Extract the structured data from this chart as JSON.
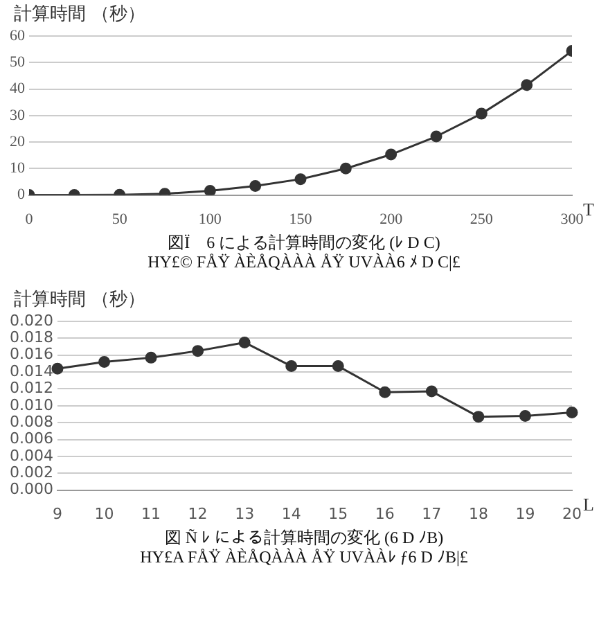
{
  "chart_data": [
    {
      "type": "line",
      "ylabel": "計算時間 （秒）",
      "xlabel": "T",
      "x": [
        0,
        25,
        50,
        75,
        100,
        125,
        150,
        175,
        200,
        225,
        250,
        275,
        300
      ],
      "series": [
        {
          "color": "#333333",
          "values": [
            0,
            0,
            0.1,
            0.5,
            1.6,
            3.4,
            6.0,
            10.0,
            15.3,
            22.1,
            30.7,
            41.5,
            54.4
          ]
        }
      ],
      "xlim": [
        0,
        300
      ],
      "xticks": [
        0,
        50,
        100,
        150,
        200,
        250,
        300
      ],
      "ylim": [
        0,
        60
      ],
      "yticks": [
        0,
        10,
        20,
        30,
        40,
        50,
        60
      ],
      "grid": "y",
      "legend": false,
      "marker": "circle",
      "line_style": "solid",
      "annotations": [
        "図Ï　6 による計算時間の変化 (ﾚ D C)",
        "HY£© FÅŸ ÀÈÅQÀÀÀ ÅŸ UVÀÀ6 ﾒ D C|£"
      ]
    },
    {
      "type": "line",
      "ylabel": "計算時間 （秒）",
      "xlabel": "L",
      "categories": [
        "9",
        "10",
        "11",
        "12",
        "13",
        "14",
        "15",
        "16",
        "17",
        "18",
        "19",
        "20"
      ],
      "series": [
        {
          "color": "#333333",
          "values": [
            0.0144,
            0.0152,
            0.0157,
            0.0165,
            0.0175,
            0.0147,
            0.0147,
            0.0116,
            0.0117,
            0.0087,
            0.0088,
            0.0092
          ]
        }
      ],
      "ylim": [
        0,
        0.02
      ],
      "yticks": [
        {
          "value": 0,
          "label": "0.000"
        },
        {
          "value": 0.002,
          "label": "0.002"
        },
        {
          "value": 0.004,
          "label": "0.004"
        },
        {
          "value": 0.006,
          "label": "0.006"
        },
        {
          "value": 0.008,
          "label": "0.008"
        },
        {
          "value": 0.01,
          "label": "0.010"
        },
        {
          "value": 0.012,
          "label": "0.012"
        },
        {
          "value": 0.014,
          "label": "0.014"
        },
        {
          "value": 0.016,
          "label": "0.016"
        },
        {
          "value": 0.018,
          "label": "0.018"
        },
        {
          "value": 0.02,
          "label": "0.020"
        }
      ],
      "grid": "y",
      "legend": false,
      "marker": "circle",
      "line_style": "solid",
      "annotations": [
        "図 Ñ ﾚ による計算時間の変化 (6 D ﾉB)",
        "HY£A FÅŸ ÀÈÅQÀÀÀ ÅŸ UVÀÀﾚ ƒ6 D ﾉB|£"
      ]
    }
  ]
}
